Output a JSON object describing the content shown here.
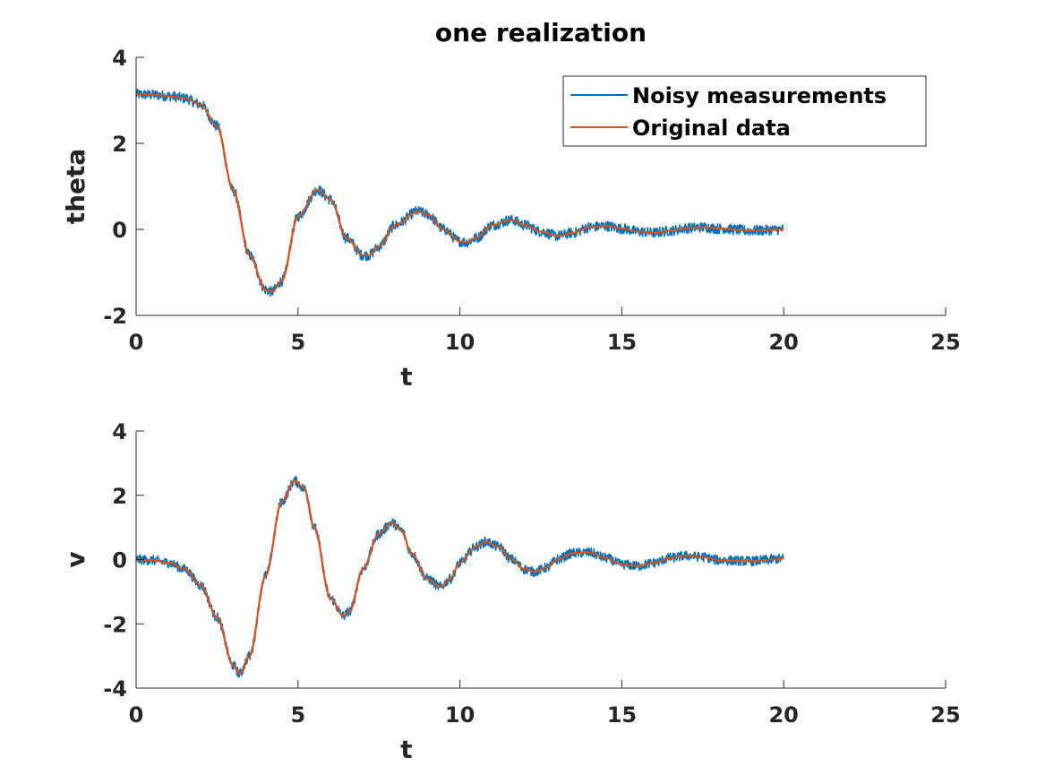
{
  "chart_data": [
    {
      "type": "line",
      "title": "one realization",
      "xlabel": "t",
      "ylabel": "theta",
      "xlim": [
        0,
        25
      ],
      "ylim": [
        -2,
        4
      ],
      "xticks": [
        0,
        5,
        10,
        15,
        20,
        25
      ],
      "yticks": [
        -2,
        0,
        2,
        4
      ],
      "grid": false,
      "box": "top-right axis lines drawn",
      "legend_placement": "top-right",
      "series": [
        {
          "name": "Noisy measurements",
          "color": "#0072BD",
          "noise_amplitude": 0.12,
          "x": [
            0,
            0.5,
            1,
            1.5,
            2,
            2.5,
            3,
            3.5,
            4,
            4.2,
            4.5,
            5,
            5.6,
            6,
            6.5,
            7,
            7.2,
            7.5,
            8,
            8.7,
            9,
            9.5,
            10,
            10.2,
            10.5,
            11,
            11.6,
            12,
            12.5,
            13,
            13.5,
            14,
            14.5,
            15,
            15.5,
            16,
            16.5,
            17,
            17.5,
            18,
            19,
            20
          ],
          "y": [
            3.14,
            3.13,
            3.1,
            3.05,
            2.9,
            2.4,
            0.9,
            -0.6,
            -1.4,
            -1.45,
            -1.2,
            0.3,
            0.92,
            0.7,
            -0.2,
            -0.6,
            -0.6,
            -0.4,
            0.1,
            0.42,
            0.35,
            0.0,
            -0.28,
            -0.3,
            -0.2,
            0.1,
            0.22,
            0.1,
            -0.05,
            -0.15,
            -0.08,
            0.05,
            0.08,
            0.02,
            -0.05,
            -0.08,
            -0.03,
            0.03,
            0.05,
            0.02,
            -0.03,
            0.0
          ]
        },
        {
          "name": "Original data",
          "color": "#D95319",
          "x": [
            0,
            0.5,
            1,
            1.5,
            2,
            2.5,
            3,
            3.5,
            4,
            4.2,
            4.5,
            5,
            5.6,
            6,
            6.5,
            7,
            7.2,
            7.5,
            8,
            8.7,
            9,
            9.5,
            10,
            10.2,
            10.5,
            11,
            11.6,
            12,
            12.5,
            13,
            13.5,
            14,
            14.5,
            15,
            15.5,
            16,
            16.5,
            17,
            17.5,
            18,
            19,
            20
          ],
          "y": [
            3.14,
            3.13,
            3.1,
            3.05,
            2.9,
            2.4,
            0.9,
            -0.6,
            -1.4,
            -1.45,
            -1.2,
            0.3,
            0.92,
            0.7,
            -0.2,
            -0.6,
            -0.6,
            -0.4,
            0.1,
            0.42,
            0.35,
            0.0,
            -0.28,
            -0.3,
            -0.2,
            0.1,
            0.22,
            0.1,
            -0.05,
            -0.15,
            -0.08,
            0.05,
            0.08,
            0.02,
            -0.05,
            -0.08,
            -0.03,
            0.03,
            0.05,
            0.02,
            -0.03,
            0.0
          ]
        }
      ]
    },
    {
      "type": "line",
      "title": "",
      "xlabel": "t",
      "ylabel": "v",
      "xlim": [
        0,
        25
      ],
      "ylim": [
        -4,
        4
      ],
      "xticks": [
        0,
        5,
        10,
        15,
        20,
        25
      ],
      "yticks": [
        -4,
        -2,
        0,
        2,
        4
      ],
      "grid": false,
      "box": "top-right axis lines drawn",
      "series": [
        {
          "name": "Noisy measurements",
          "color": "#0072BD",
          "noise_amplitude": 0.15,
          "x": [
            0,
            0.5,
            1,
            1.5,
            2,
            2.5,
            3,
            3.2,
            3.5,
            4,
            4.5,
            4.9,
            5.2,
            5.5,
            6,
            6.4,
            6.6,
            7,
            7.5,
            7.9,
            8.2,
            8.5,
            9,
            9.4,
            9.7,
            10,
            10.5,
            10.8,
            11.2,
            11.6,
            12,
            12.3,
            12.7,
            13,
            13.5,
            14,
            14.5,
            15,
            15.5,
            16,
            16.5,
            17,
            17.5,
            18,
            19,
            20
          ],
          "y": [
            0.0,
            -0.02,
            -0.1,
            -0.3,
            -0.8,
            -1.8,
            -3.3,
            -3.55,
            -3.0,
            -0.5,
            1.8,
            2.45,
            2.2,
            1.0,
            -1.2,
            -1.75,
            -1.6,
            -0.3,
            0.8,
            1.15,
            0.9,
            0.2,
            -0.6,
            -0.85,
            -0.6,
            -0.1,
            0.4,
            0.55,
            0.4,
            0.0,
            -0.3,
            -0.38,
            -0.25,
            0.0,
            0.2,
            0.22,
            0.05,
            -0.15,
            -0.2,
            -0.1,
            0.05,
            0.12,
            0.08,
            -0.02,
            -0.05,
            0.03
          ]
        },
        {
          "name": "Original data",
          "color": "#D95319",
          "x": [
            0,
            0.5,
            1,
            1.5,
            2,
            2.5,
            3,
            3.2,
            3.5,
            4,
            4.5,
            4.9,
            5.2,
            5.5,
            6,
            6.4,
            6.6,
            7,
            7.5,
            7.9,
            8.2,
            8.5,
            9,
            9.4,
            9.7,
            10,
            10.5,
            10.8,
            11.2,
            11.6,
            12,
            12.3,
            12.7,
            13,
            13.5,
            14,
            14.5,
            15,
            15.5,
            16,
            16.5,
            17,
            17.5,
            18,
            19,
            20
          ],
          "y": [
            0.0,
            -0.02,
            -0.1,
            -0.3,
            -0.8,
            -1.8,
            -3.3,
            -3.55,
            -3.0,
            -0.5,
            1.8,
            2.45,
            2.2,
            1.0,
            -1.2,
            -1.75,
            -1.6,
            -0.3,
            0.8,
            1.15,
            0.9,
            0.2,
            -0.6,
            -0.85,
            -0.6,
            -0.1,
            0.4,
            0.55,
            0.4,
            0.0,
            -0.3,
            -0.38,
            -0.25,
            0.0,
            0.2,
            0.22,
            0.05,
            -0.15,
            -0.2,
            -0.1,
            0.05,
            0.12,
            0.08,
            -0.02,
            -0.05,
            0.03
          ]
        }
      ]
    }
  ]
}
